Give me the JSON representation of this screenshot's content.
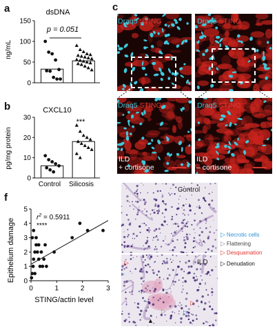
{
  "panels": {
    "a": {
      "letter": "a",
      "title": "dsDNA",
      "ylabel": "ng/mL",
      "yticks": [
        "0",
        "50",
        "100",
        "150"
      ],
      "pvalue": "p = 0.051",
      "chart_data": {
        "type": "bar",
        "categories": [
          "Control",
          "Silicosis"
        ],
        "values": [
          33,
          53
        ],
        "ylim": [
          0,
          150
        ],
        "points": {
          "Control": [
            100,
            74,
            70,
            55,
            32,
            29,
            28,
            13,
            9,
            9
          ],
          "Silicosis": [
            90,
            80,
            75,
            70,
            68,
            66,
            64,
            62,
            60,
            58,
            56,
            54,
            52,
            50,
            48,
            46,
            44,
            40,
            36,
            31
          ]
        }
      }
    },
    "b": {
      "letter": "b",
      "title": "CXCL10",
      "ylabel": "pg/mg protein",
      "yticks": [
        "0",
        "10",
        "20",
        "30"
      ],
      "significance": "***",
      "xticklabels": [
        "Control",
        "Silicosis"
      ],
      "chart_data": {
        "type": "bar",
        "categories": [
          "Control",
          "Silicosis"
        ],
        "values": [
          6,
          18
        ],
        "ylim": [
          0,
          30
        ],
        "points": {
          "Control": [
            11,
            9,
            8,
            7,
            6,
            5,
            4,
            3
          ],
          "Silicosis": [
            26,
            23,
            21,
            20,
            19,
            18,
            17,
            16,
            15,
            14,
            12,
            10
          ]
        }
      }
    },
    "c": {
      "letter": "c",
      "channel_a": "Draq5",
      "channel_b": "STING",
      "left_caption_1": "ILD",
      "left_caption_2": "+ cortisone",
      "right_caption_1": "ILD",
      "right_caption_2": "– cortisone"
    },
    "f": {
      "letter": "f",
      "ylabel": "Epithelium damage",
      "xlabel": "STING/actin level",
      "r2_prefix": "r",
      "r2_sup": "2",
      "r2_value": " = 0.5911",
      "stars": "****",
      "xticks": [
        "0",
        "1",
        "2",
        "3"
      ],
      "yticks": [
        "0",
        "1",
        "2",
        "3",
        "4",
        "5"
      ],
      "chart_data": {
        "type": "scatter",
        "xlim": [
          0,
          3
        ],
        "ylim": [
          0,
          5
        ],
        "x": [
          0.02,
          0.05,
          0.08,
          0.1,
          0.15,
          0.2,
          0.25,
          0.3,
          0.35,
          0.5,
          0.05,
          0.1,
          0.2,
          0.3,
          0.4,
          0.55,
          0.9,
          1.6,
          1.9,
          2.2,
          2.8,
          0.6,
          0.15,
          0.45
        ],
        "y": [
          0.2,
          0.5,
          1.0,
          1.5,
          2.0,
          2.5,
          2.0,
          1.5,
          1.0,
          1.5,
          3.0,
          3.5,
          3.0,
          2.5,
          2.0,
          2.5,
          2.0,
          3.0,
          4.0,
          3.5,
          3.5,
          1.0,
          0.5,
          1.0
        ],
        "fit": {
          "x": [
            0,
            3
          ],
          "y": [
            1.15,
            4.2
          ]
        }
      }
    },
    "histology": {
      "top_label": "Control",
      "bottom_label": "ILD",
      "legend": [
        {
          "label": "Necrotic cells",
          "color": "#2f8fd0"
        },
        {
          "label": "Flattening",
          "color": "#8a8a8a"
        },
        {
          "label": "Desquamation",
          "color": "#e1352e"
        },
        {
          "label": "Denudation",
          "color": "#111111"
        }
      ]
    }
  }
}
